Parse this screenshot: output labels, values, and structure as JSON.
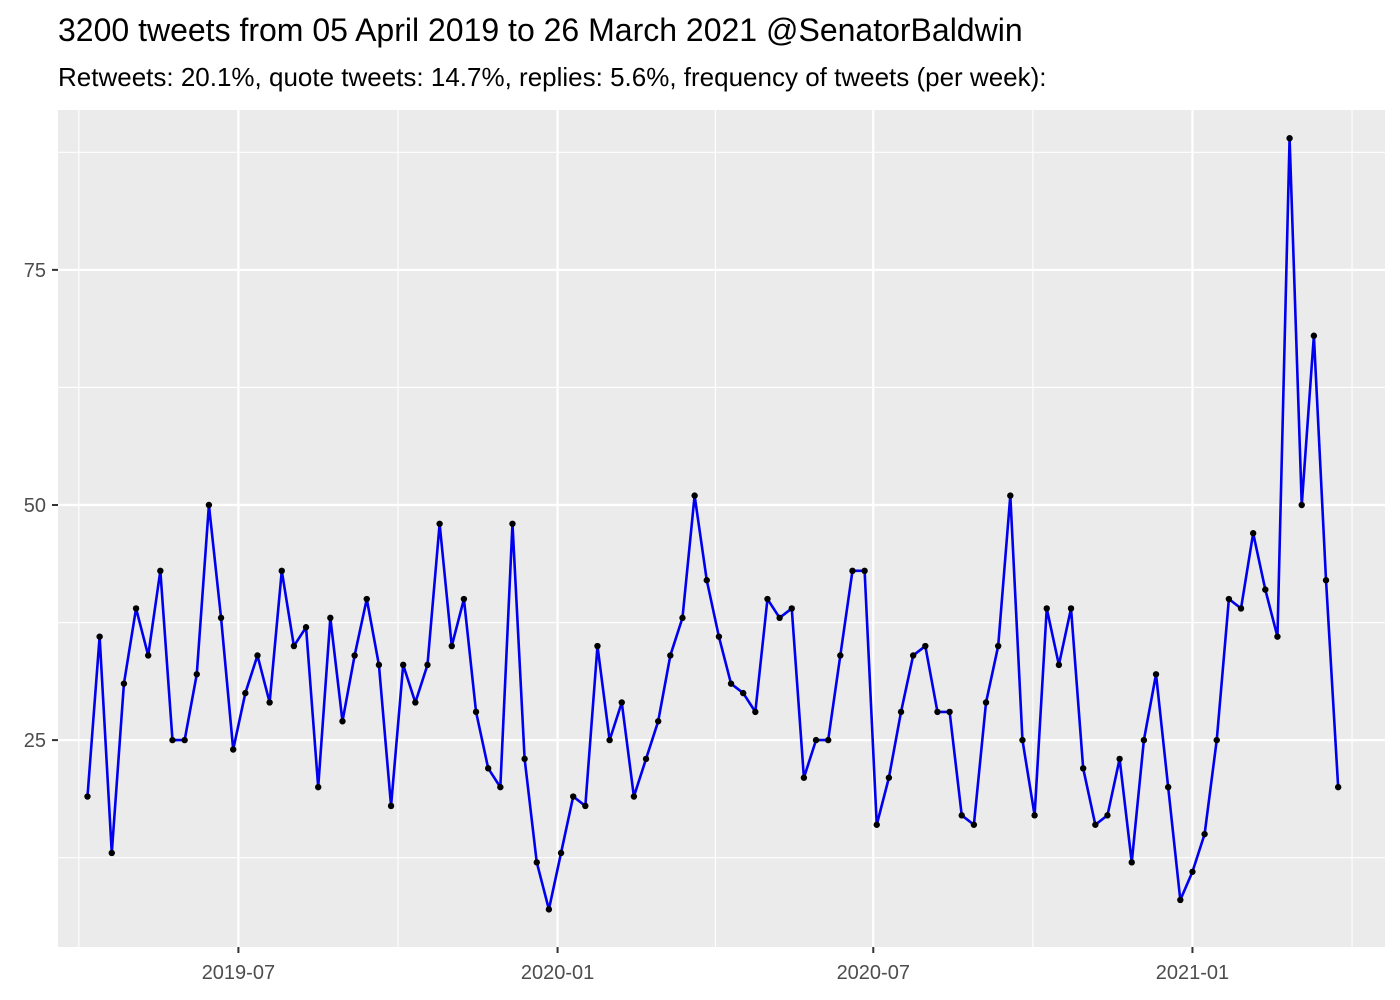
{
  "title": "3200 tweets from 05 April 2019 to 26 March 2021 @SenatorBaldwin",
  "subtitle": "Retweets: 20.1%, quote tweets: 14.7%, replies: 5.6%, frequency of tweets (per week):",
  "chart_data": {
    "type": "line",
    "title": "3200 tweets from 05 April 2019 to 26 March 2021 @SenatorBaldwin",
    "subtitle": "Retweets: 20.1%, quote tweets: 14.7%, replies: 5.6%, frequency of tweets (per week):",
    "xlabel": "",
    "ylabel": "",
    "x_ticks": [
      "2019-07",
      "2020-01",
      "2020-07",
      "2021-01"
    ],
    "y_ticks": [
      25,
      50,
      75
    ],
    "ylim": [
      3,
      92
    ],
    "xlim": [
      "2019-03-19",
      "2021-04-22"
    ],
    "grid": true,
    "line_color": "#0000ee",
    "point_color": "#000000",
    "background": "#ebebeb",
    "series": [
      {
        "values": [
          {
            "x": "2019-04-05",
            "y": 19
          },
          {
            "x": "2019-04-12",
            "y": 36
          },
          {
            "x": "2019-04-19",
            "y": 13
          },
          {
            "x": "2019-04-26",
            "y": 31
          },
          {
            "x": "2019-05-03",
            "y": 39
          },
          {
            "x": "2019-05-10",
            "y": 34
          },
          {
            "x": "2019-05-17",
            "y": 43
          },
          {
            "x": "2019-05-24",
            "y": 25
          },
          {
            "x": "2019-05-31",
            "y": 25
          },
          {
            "x": "2019-06-07",
            "y": 32
          },
          {
            "x": "2019-06-14",
            "y": 50
          },
          {
            "x": "2019-06-21",
            "y": 38
          },
          {
            "x": "2019-06-28",
            "y": 24
          },
          {
            "x": "2019-07-05",
            "y": 30
          },
          {
            "x": "2019-07-12",
            "y": 34
          },
          {
            "x": "2019-07-19",
            "y": 29
          },
          {
            "x": "2019-07-26",
            "y": 43
          },
          {
            "x": "2019-08-02",
            "y": 35
          },
          {
            "x": "2019-08-09",
            "y": 37
          },
          {
            "x": "2019-08-16",
            "y": 20
          },
          {
            "x": "2019-08-23",
            "y": 38
          },
          {
            "x": "2019-08-30",
            "y": 27
          },
          {
            "x": "2019-09-06",
            "y": 34
          },
          {
            "x": "2019-09-13",
            "y": 40
          },
          {
            "x": "2019-09-20",
            "y": 33
          },
          {
            "x": "2019-09-27",
            "y": 18
          },
          {
            "x": "2019-10-04",
            "y": 33
          },
          {
            "x": "2019-10-11",
            "y": 29
          },
          {
            "x": "2019-10-18",
            "y": 33
          },
          {
            "x": "2019-10-25",
            "y": 48
          },
          {
            "x": "2019-11-01",
            "y": 35
          },
          {
            "x": "2019-11-08",
            "y": 40
          },
          {
            "x": "2019-11-15",
            "y": 28
          },
          {
            "x": "2019-11-22",
            "y": 22
          },
          {
            "x": "2019-11-29",
            "y": 20
          },
          {
            "x": "2019-12-06",
            "y": 48
          },
          {
            "x": "2019-12-13",
            "y": 23
          },
          {
            "x": "2019-12-20",
            "y": 12
          },
          {
            "x": "2019-12-27",
            "y": 7
          },
          {
            "x": "2020-01-03",
            "y": 13
          },
          {
            "x": "2020-01-10",
            "y": 19
          },
          {
            "x": "2020-01-17",
            "y": 18
          },
          {
            "x": "2020-01-24",
            "y": 35
          },
          {
            "x": "2020-01-31",
            "y": 25
          },
          {
            "x": "2020-02-07",
            "y": 29
          },
          {
            "x": "2020-02-14",
            "y": 19
          },
          {
            "x": "2020-02-21",
            "y": 23
          },
          {
            "x": "2020-02-28",
            "y": 27
          },
          {
            "x": "2020-03-06",
            "y": 34
          },
          {
            "x": "2020-03-13",
            "y": 38
          },
          {
            "x": "2020-03-20",
            "y": 51
          },
          {
            "x": "2020-03-27",
            "y": 42
          },
          {
            "x": "2020-04-03",
            "y": 36
          },
          {
            "x": "2020-04-10",
            "y": 31
          },
          {
            "x": "2020-04-17",
            "y": 30
          },
          {
            "x": "2020-04-24",
            "y": 28
          },
          {
            "x": "2020-05-01",
            "y": 40
          },
          {
            "x": "2020-05-08",
            "y": 38
          },
          {
            "x": "2020-05-15",
            "y": 39
          },
          {
            "x": "2020-05-22",
            "y": 21
          },
          {
            "x": "2020-05-29",
            "y": 25
          },
          {
            "x": "2020-06-05",
            "y": 25
          },
          {
            "x": "2020-06-12",
            "y": 34
          },
          {
            "x": "2020-06-19",
            "y": 43
          },
          {
            "x": "2020-06-26",
            "y": 43
          },
          {
            "x": "2020-07-03",
            "y": 16
          },
          {
            "x": "2020-07-10",
            "y": 21
          },
          {
            "x": "2020-07-17",
            "y": 28
          },
          {
            "x": "2020-07-24",
            "y": 34
          },
          {
            "x": "2020-07-31",
            "y": 35
          },
          {
            "x": "2020-08-07",
            "y": 28
          },
          {
            "x": "2020-08-14",
            "y": 28
          },
          {
            "x": "2020-08-21",
            "y": 17
          },
          {
            "x": "2020-08-28",
            "y": 16
          },
          {
            "x": "2020-09-04",
            "y": 29
          },
          {
            "x": "2020-09-11",
            "y": 35
          },
          {
            "x": "2020-09-18",
            "y": 51
          },
          {
            "x": "2020-09-25",
            "y": 25
          },
          {
            "x": "2020-10-02",
            "y": 17
          },
          {
            "x": "2020-10-09",
            "y": 39
          },
          {
            "x": "2020-10-16",
            "y": 33
          },
          {
            "x": "2020-10-23",
            "y": 39
          },
          {
            "x": "2020-10-30",
            "y": 22
          },
          {
            "x": "2020-11-06",
            "y": 16
          },
          {
            "x": "2020-11-13",
            "y": 17
          },
          {
            "x": "2020-11-20",
            "y": 23
          },
          {
            "x": "2020-11-27",
            "y": 12
          },
          {
            "x": "2020-12-04",
            "y": 25
          },
          {
            "x": "2020-12-11",
            "y": 32
          },
          {
            "x": "2020-12-18",
            "y": 20
          },
          {
            "x": "2020-12-25",
            "y": 8
          },
          {
            "x": "2021-01-01",
            "y": 11
          },
          {
            "x": "2021-01-08",
            "y": 15
          },
          {
            "x": "2021-01-15",
            "y": 25
          },
          {
            "x": "2021-01-22",
            "y": 40
          },
          {
            "x": "2021-01-29",
            "y": 39
          },
          {
            "x": "2021-02-05",
            "y": 47
          },
          {
            "x": "2021-02-12",
            "y": 41
          },
          {
            "x": "2021-02-19",
            "y": 36
          },
          {
            "x": "2021-02-26",
            "y": 89
          },
          {
            "x": "2021-03-05",
            "y": 50
          },
          {
            "x": "2021-03-12",
            "y": 68
          },
          {
            "x": "2021-03-19",
            "y": 42
          },
          {
            "x": "2021-03-26",
            "y": 20
          }
        ]
      }
    ]
  }
}
